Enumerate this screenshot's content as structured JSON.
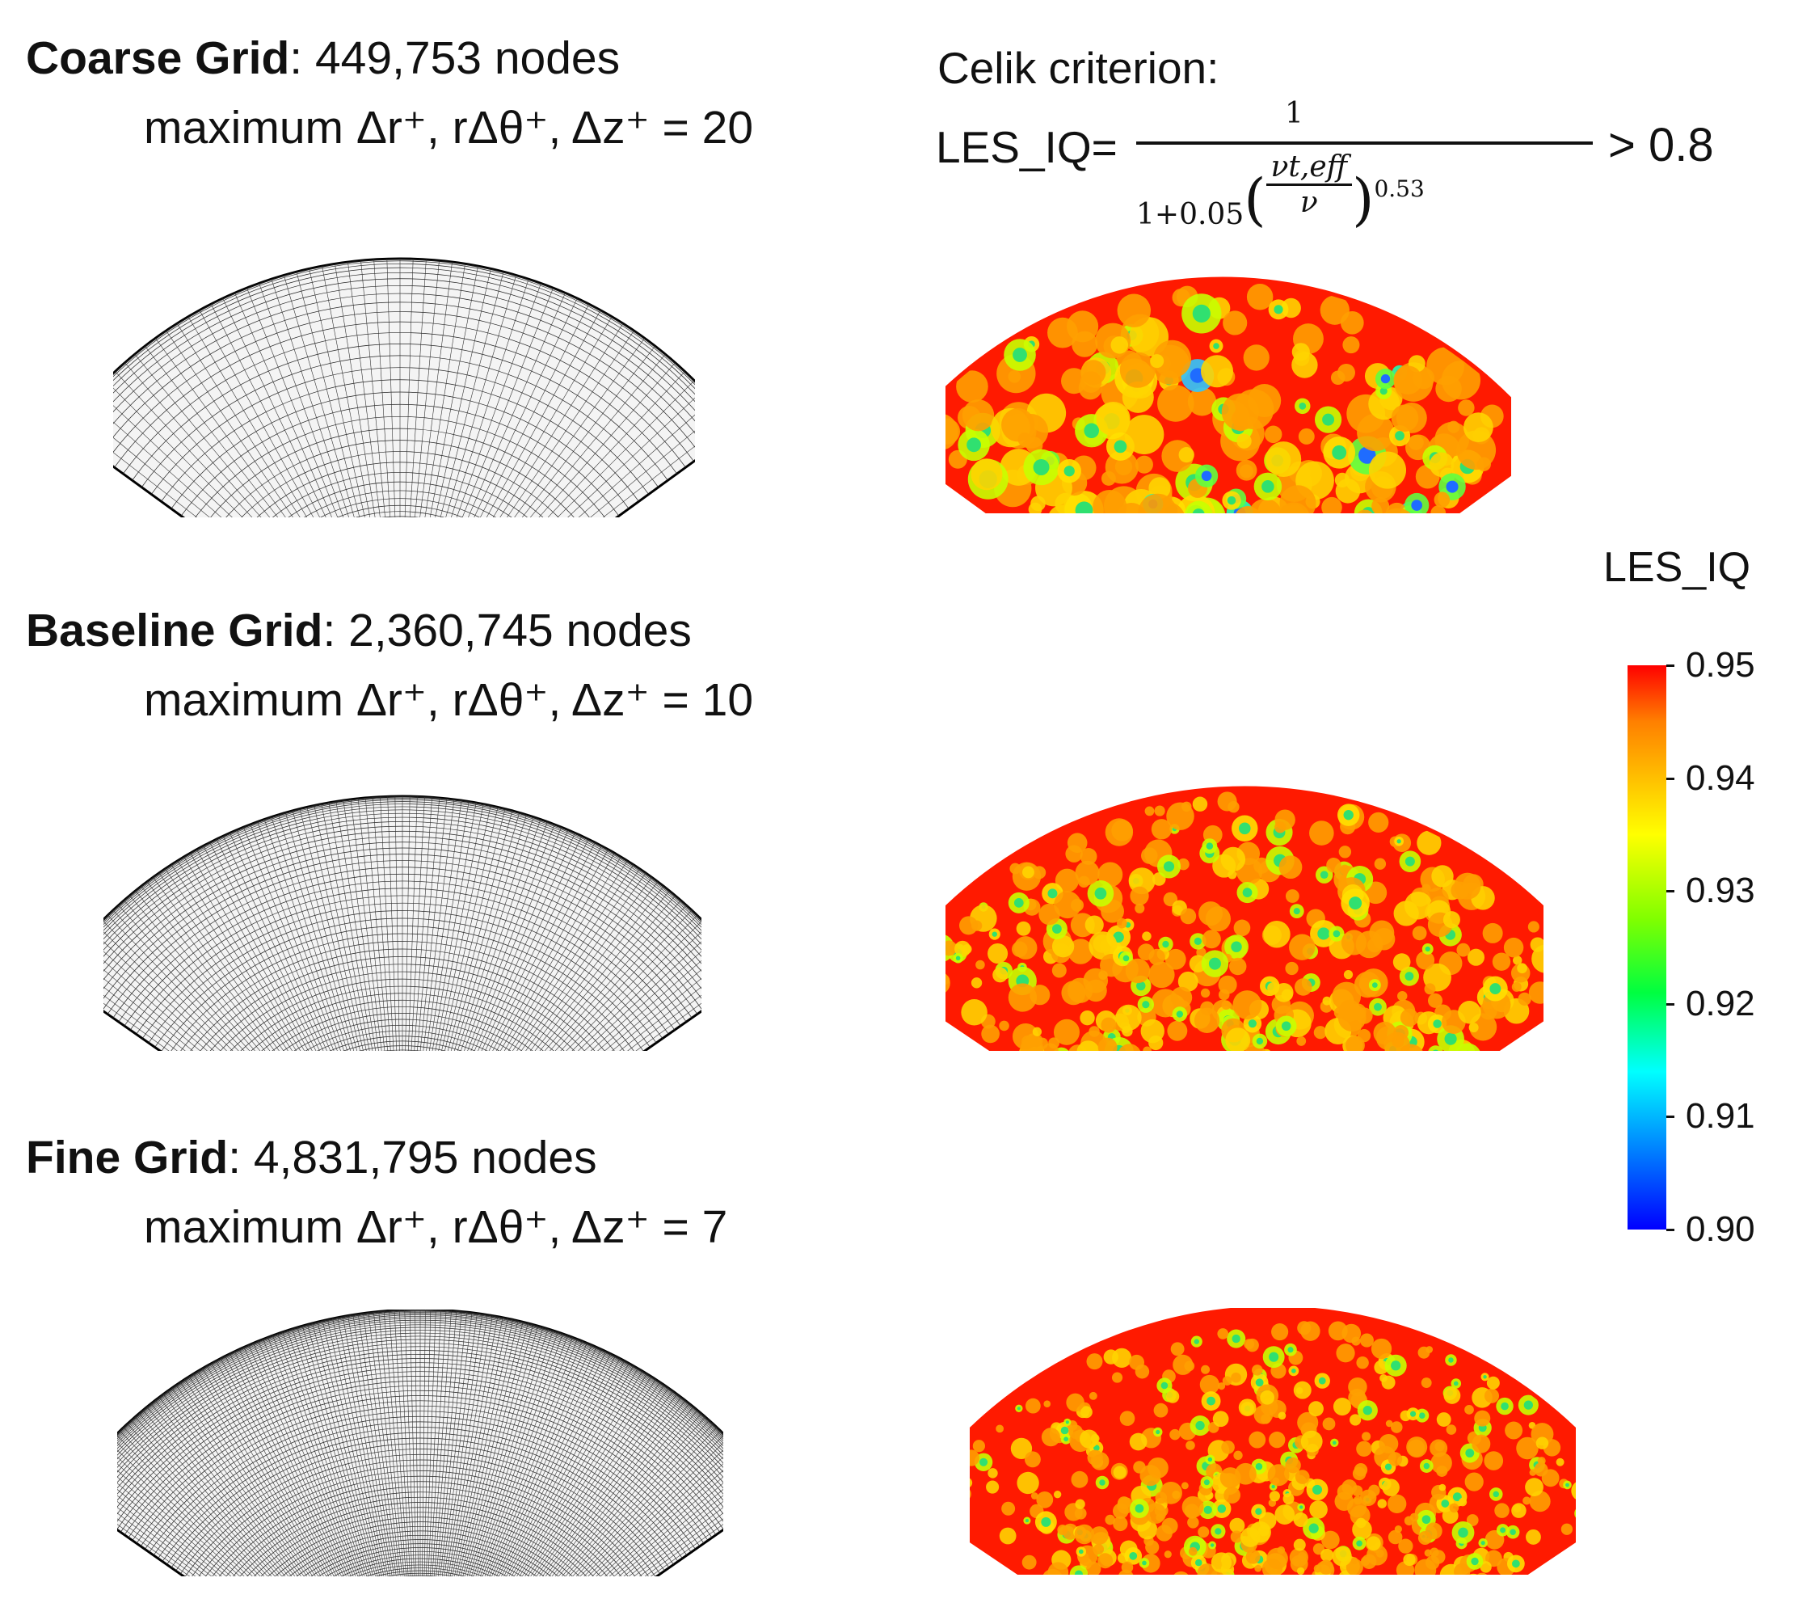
{
  "grids": [
    {
      "name": "Coarse Grid",
      "nodes_text": ": 449,753 nodes",
      "resolution_text": "maximum Δr⁺, rΔθ⁺, Δz⁺ = 20"
    },
    {
      "name": "Baseline Grid",
      "nodes_text": ": 2,360,745 nodes",
      "resolution_text": "maximum Δr⁺, rΔθ⁺, Δz⁺ = 10"
    },
    {
      "name": "Fine Grid",
      "nodes_text": ": 4,831,795 nodes",
      "resolution_text": "maximum Δr⁺, rΔθ⁺, Δz⁺ = 7"
    }
  ],
  "criterion": {
    "title": "Celik criterion:",
    "lhs": "LES_IQ=",
    "numerator": "1",
    "denominator_prefix": "1+0.05",
    "ratio_top": "νt,eff",
    "ratio_bottom": "ν",
    "exponent": "0.53",
    "rhs": "> 0.8"
  },
  "colorbar": {
    "label": "LES_IQ",
    "ticks": [
      "0.95",
      "0.94",
      "0.93",
      "0.92",
      "0.91",
      "0.90"
    ],
    "min": 0.9,
    "max": 0.95,
    "colors": [
      "#ff0000",
      "#ffff00",
      "#00ff40",
      "#00ffff",
      "#0000ff"
    ]
  }
}
